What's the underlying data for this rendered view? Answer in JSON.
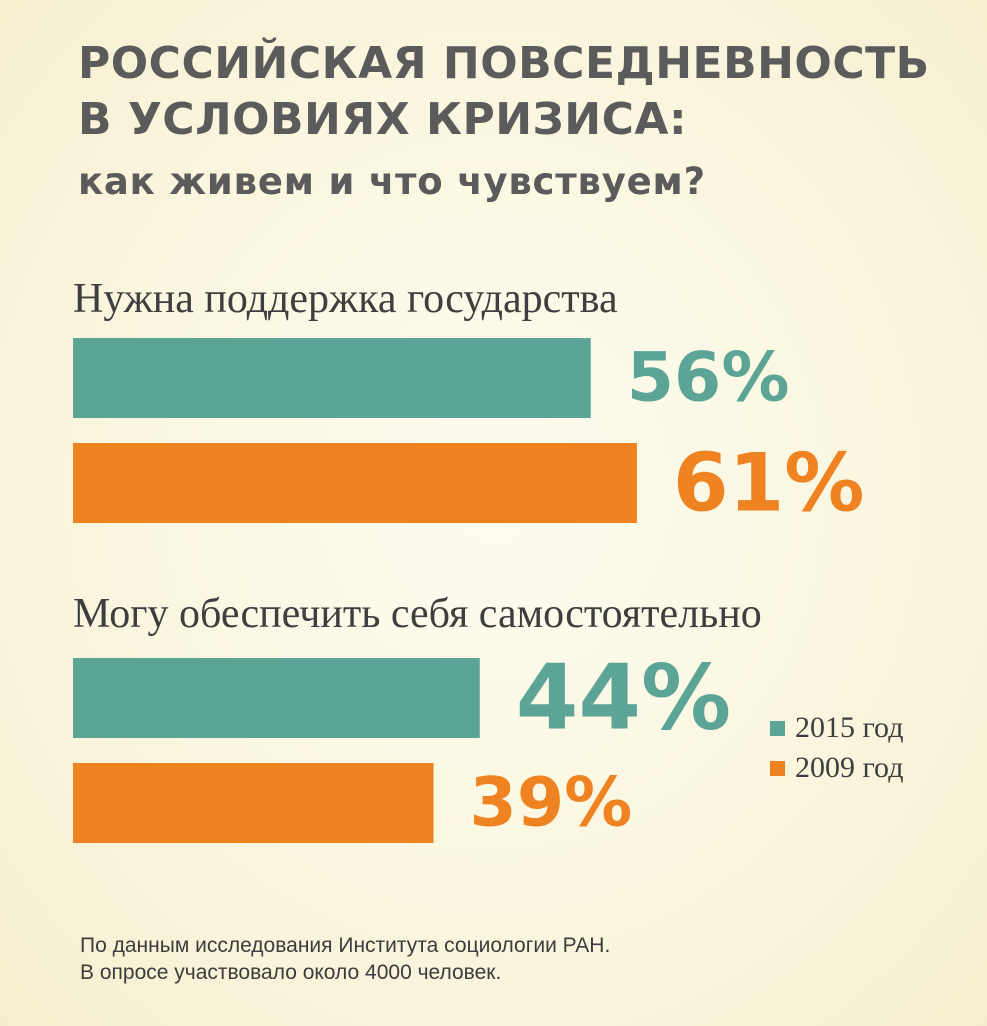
{
  "header": {
    "line1": "РОССИЙСКАЯ ПОВСЕДНЕВНОСТЬ",
    "line2": "В УСЛОВИЯХ КРИЗИСА:",
    "line3": "как живем и что чувствуем?"
  },
  "chart_data": {
    "type": "bar",
    "orientation": "horizontal",
    "categories": [
      "Нужна поддержка государства",
      "Могу обеспечить себя самостоятельно"
    ],
    "series": [
      {
        "name": "2015 год",
        "values": [
          56,
          44
        ],
        "labels": [
          "56%",
          "44%"
        ],
        "color": "#5ba496"
      },
      {
        "name": "2009 год",
        "values": [
          61,
          39
        ],
        "labels": [
          "61%",
          "39%"
        ],
        "color": "#ef8221"
      }
    ],
    "unit": "%",
    "legend_position": "right"
  },
  "footnote": {
    "line1": "По данным исследования Института социологии РАН.",
    "line2": "В опросе участвовало около 4000 человек."
  }
}
